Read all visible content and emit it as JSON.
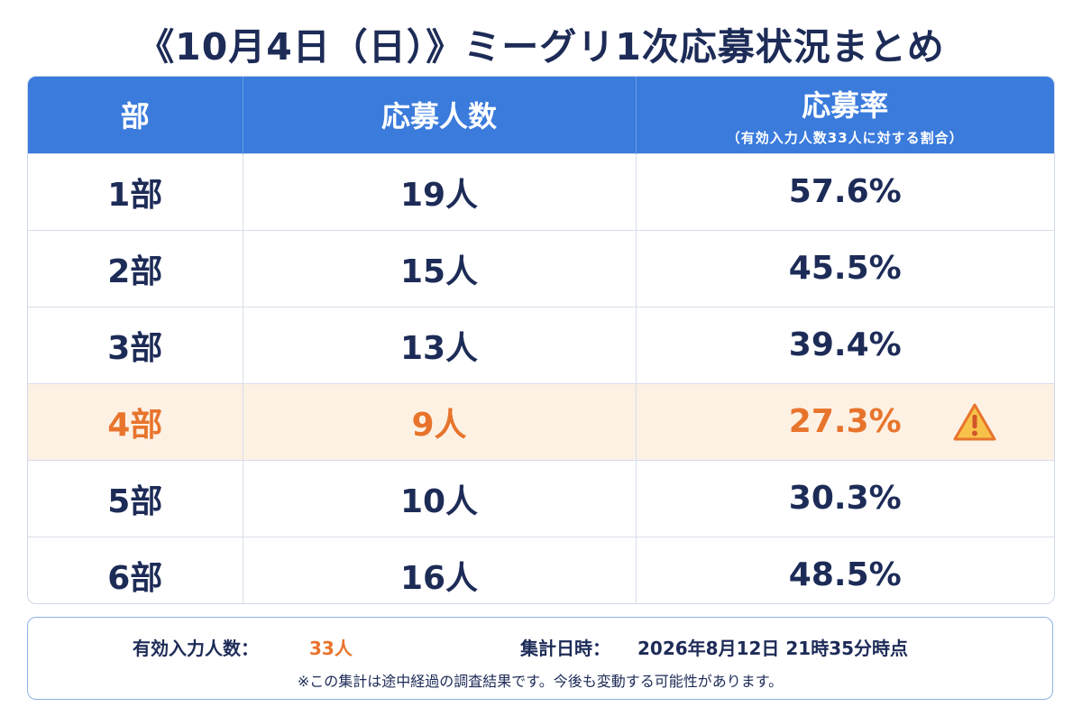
{
  "title": "《10月4日（日）》ミーグリ1次応募状況まとめ",
  "table": {
    "headers": {
      "part": "部",
      "applicants": "応募人数",
      "rate": "応募率",
      "rate_note": "（有効入力人数33人に対する割合）"
    },
    "rows": [
      {
        "part": "1部",
        "applicants": "19人",
        "rate": "57.6%"
      },
      {
        "part": "2部",
        "applicants": "15人",
        "rate": "45.5%"
      },
      {
        "part": "3部",
        "applicants": "13人",
        "rate": "39.4%"
      },
      {
        "part": "4部",
        "applicants": "9人",
        "rate": "27.3%",
        "highlight": true,
        "icon": "warning-icon"
      },
      {
        "part": "5部",
        "applicants": "10人",
        "rate": "30.3%"
      },
      {
        "part": "6部",
        "applicants": "16人",
        "rate": "48.5%"
      }
    ]
  },
  "footer": {
    "valid_label": "有効入力人数：",
    "valid_value": "33人",
    "date_label": "集計日時：",
    "date_value": "2026年8月12日 21時35分時点",
    "note": "※この集計は途中経過の調査結果です。今後も変動する可能性があります。"
  },
  "colors": {
    "header_bg": "#3a7bdc",
    "text": "#1d2b57",
    "highlight_text": "#e8742c",
    "highlight_bg": "#fdf1e4",
    "warning_fill": "#f7c24a"
  }
}
